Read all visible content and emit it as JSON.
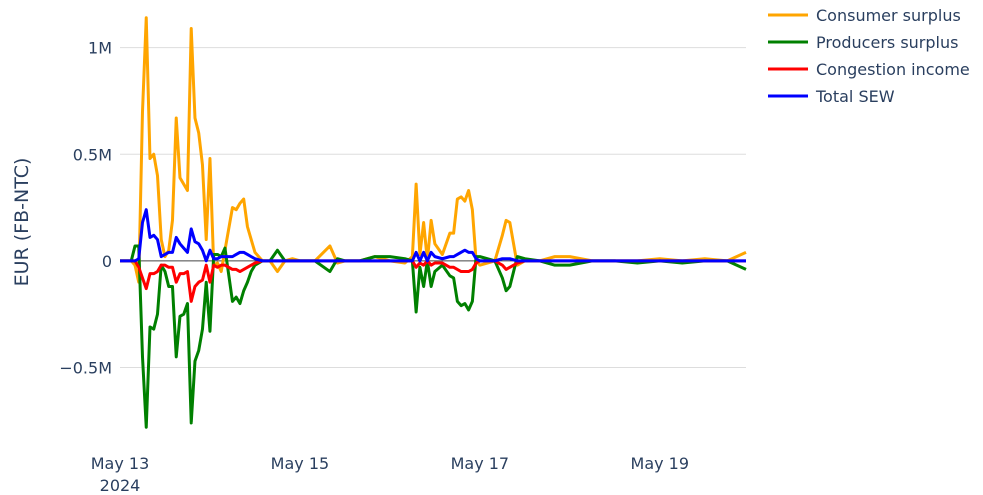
{
  "chart_data": {
    "type": "line",
    "y_label": "EUR (FB-NTC)",
    "x": [
      "2024-05-13 00:00",
      "2024-05-13 03:00",
      "2024-05-13 04:00",
      "2024-05-13 05:00",
      "2024-05-13 06:00",
      "2024-05-13 07:00",
      "2024-05-13 08:00",
      "2024-05-13 09:00",
      "2024-05-13 10:00",
      "2024-05-13 11:00",
      "2024-05-13 12:00",
      "2024-05-13 13:00",
      "2024-05-13 14:00",
      "2024-05-13 15:00",
      "2024-05-13 16:00",
      "2024-05-13 17:00",
      "2024-05-13 18:00",
      "2024-05-13 19:00",
      "2024-05-13 20:00",
      "2024-05-13 21:00",
      "2024-05-13 22:00",
      "2024-05-13 23:00",
      "2024-05-14 00:00",
      "2024-05-14 01:00",
      "2024-05-14 02:00",
      "2024-05-14 03:00",
      "2024-05-14 04:00",
      "2024-05-14 06:00",
      "2024-05-14 07:00",
      "2024-05-14 08:00",
      "2024-05-14 09:00",
      "2024-05-14 10:00",
      "2024-05-14 11:00",
      "2024-05-14 12:00",
      "2024-05-14 14:00",
      "2024-05-14 16:00",
      "2024-05-14 18:00",
      "2024-05-14 20:00",
      "2024-05-14 22:00",
      "2024-05-15 00:00",
      "2024-05-15 04:00",
      "2024-05-15 08:00",
      "2024-05-15 10:00",
      "2024-05-15 12:00",
      "2024-05-15 16:00",
      "2024-05-15 20:00",
      "2024-05-16 00:00",
      "2024-05-16 04:00",
      "2024-05-16 06:00",
      "2024-05-16 07:00",
      "2024-05-16 08:00",
      "2024-05-16 09:00",
      "2024-05-16 10:00",
      "2024-05-16 11:00",
      "2024-05-16 12:00",
      "2024-05-16 14:00",
      "2024-05-16 16:00",
      "2024-05-16 17:00",
      "2024-05-16 18:00",
      "2024-05-16 19:00",
      "2024-05-16 20:00",
      "2024-05-16 21:00",
      "2024-05-16 22:00",
      "2024-05-16 23:00",
      "2024-05-17 00:00",
      "2024-05-17 04:00",
      "2024-05-17 06:00",
      "2024-05-17 07:00",
      "2024-05-17 08:00",
      "2024-05-17 10:00",
      "2024-05-17 12:00",
      "2024-05-17 16:00",
      "2024-05-17 20:00",
      "2024-05-18 00:00",
      "2024-05-18 06:00",
      "2024-05-18 12:00",
      "2024-05-18 18:00",
      "2024-05-19 00:00",
      "2024-05-19 06:00",
      "2024-05-19 12:00",
      "2024-05-19 18:00",
      "2024-05-19 23:00"
    ],
    "series": [
      {
        "name": "Consumer surplus",
        "color": "#ffa500",
        "values": [
          0,
          0,
          -20000,
          -100000,
          700000,
          1140000,
          480000,
          500000,
          400000,
          100000,
          20000,
          50000,
          190000,
          670000,
          390000,
          360000,
          330000,
          1090000,
          670000,
          600000,
          450000,
          100000,
          480000,
          -20000,
          -10000,
          -50000,
          50000,
          250000,
          240000,
          270000,
          290000,
          160000,
          100000,
          40000,
          0,
          0,
          -50000,
          0,
          10000,
          0,
          0,
          70000,
          -10000,
          0,
          0,
          20000,
          0,
          -10000,
          20000,
          360000,
          30000,
          180000,
          0,
          190000,
          80000,
          30000,
          130000,
          130000,
          290000,
          300000,
          280000,
          330000,
          240000,
          0,
          -20000,
          0,
          120000,
          190000,
          180000,
          -20000,
          0,
          0,
          20000,
          20000,
          0,
          0,
          0,
          10000,
          0,
          10000,
          0,
          40000
        ]
      },
      {
        "name": "Producers surplus",
        "color": "#008000",
        "values": [
          0,
          0,
          70000,
          70000,
          -450000,
          -780000,
          -310000,
          -320000,
          -250000,
          -20000,
          -50000,
          -120000,
          -120000,
          -450000,
          -260000,
          -250000,
          -200000,
          -760000,
          -470000,
          -420000,
          -320000,
          -100000,
          -330000,
          30000,
          30000,
          20000,
          60000,
          -190000,
          -170000,
          -200000,
          -140000,
          -100000,
          -50000,
          -20000,
          0,
          0,
          50000,
          0,
          0,
          0,
          0,
          -50000,
          10000,
          0,
          0,
          20000,
          20000,
          10000,
          0,
          -240000,
          -30000,
          -120000,
          0,
          -120000,
          -50000,
          -20000,
          -70000,
          -80000,
          -190000,
          -210000,
          -200000,
          -230000,
          -190000,
          20000,
          20000,
          0,
          -80000,
          -140000,
          -120000,
          20000,
          10000,
          0,
          -20000,
          -20000,
          0,
          0,
          -10000,
          0,
          -10000,
          0,
          0,
          -40000
        ]
      },
      {
        "name": "Congestion income",
        "color": "#ff0000",
        "values": [
          0,
          0,
          0,
          -30000,
          -80000,
          -130000,
          -60000,
          -60000,
          -50000,
          -20000,
          -20000,
          -30000,
          -30000,
          -100000,
          -60000,
          -60000,
          -50000,
          -190000,
          -120000,
          -100000,
          -90000,
          -20000,
          -100000,
          -20000,
          -30000,
          -20000,
          -20000,
          -40000,
          -40000,
          -50000,
          -40000,
          -30000,
          -20000,
          -10000,
          0,
          0,
          0,
          0,
          0,
          0,
          0,
          0,
          0,
          0,
          0,
          0,
          0,
          0,
          0,
          -30000,
          -10000,
          -20000,
          0,
          -20000,
          -10000,
          -10000,
          -30000,
          -30000,
          -40000,
          -50000,
          -50000,
          -50000,
          -40000,
          -10000,
          0,
          0,
          -20000,
          -40000,
          -30000,
          -10000,
          0,
          0,
          0,
          0,
          0,
          0,
          0,
          0,
          0,
          0,
          0,
          0
        ]
      },
      {
        "name": "Total SEW",
        "color": "#0000ff",
        "values": [
          0,
          0,
          0,
          10000,
          180000,
          240000,
          110000,
          120000,
          100000,
          20000,
          30000,
          40000,
          40000,
          110000,
          80000,
          60000,
          40000,
          150000,
          90000,
          80000,
          50000,
          0,
          50000,
          10000,
          10000,
          20000,
          20000,
          20000,
          30000,
          40000,
          40000,
          30000,
          20000,
          10000,
          0,
          0,
          0,
          0,
          0,
          0,
          0,
          0,
          0,
          0,
          0,
          0,
          0,
          0,
          0,
          40000,
          0,
          40000,
          0,
          40000,
          20000,
          10000,
          20000,
          20000,
          30000,
          40000,
          50000,
          40000,
          40000,
          10000,
          0,
          0,
          10000,
          10000,
          10000,
          0,
          0,
          0,
          0,
          0,
          0,
          0,
          0,
          0,
          0,
          0,
          0,
          0
        ]
      }
    ],
    "xlim": [
      "2024-05-13 00:00",
      "2024-05-19 23:00"
    ],
    "xticks": [
      {
        "value": "2024-05-13 00:00",
        "label": "May 13\n2024"
      },
      {
        "value": "2024-05-15 00:00",
        "label": "May 15"
      },
      {
        "value": "2024-05-17 00:00",
        "label": "May 17"
      },
      {
        "value": "2024-05-19 00:00",
        "label": "May 19"
      }
    ],
    "ylim": [
      -840000,
      1200000
    ],
    "yticks": [
      {
        "value": -500000,
        "label": "−0.5M"
      },
      {
        "value": 0,
        "label": "0"
      },
      {
        "value": 500000,
        "label": "0.5M"
      },
      {
        "value": 1000000,
        "label": "1M"
      }
    ],
    "grid": true,
    "legend": "outside-right"
  }
}
